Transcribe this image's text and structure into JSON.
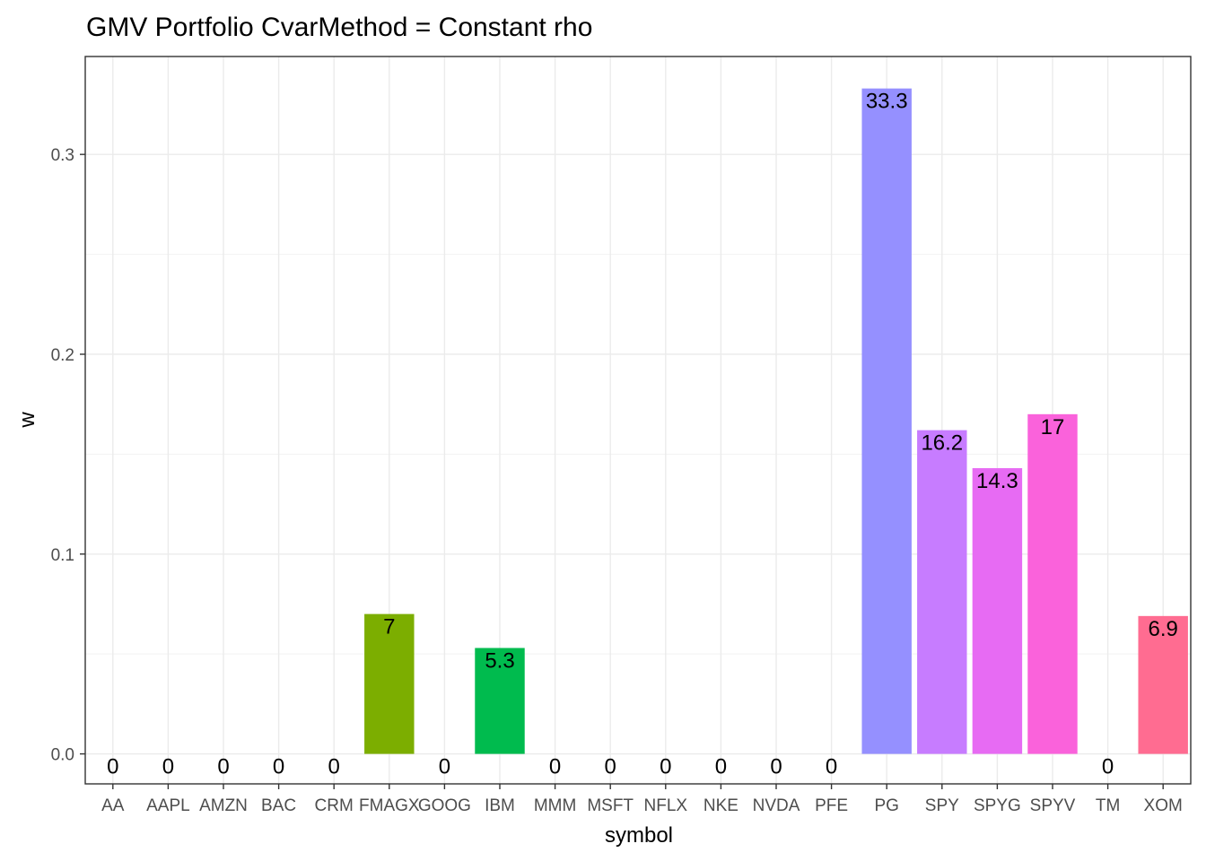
{
  "chart_data": {
    "type": "bar",
    "title": "GMV Portfolio CvarMethod = Constant rho",
    "xlabel": "symbol",
    "ylabel": "w",
    "ylim": [
      -0.015,
      0.349
    ],
    "yticks": [
      0.0,
      0.1,
      0.2,
      0.3
    ],
    "ytick_labels": [
      "0.0",
      "0.1",
      "0.2",
      "0.3"
    ],
    "grid": true,
    "legend": "none",
    "categories": [
      "AA",
      "AAPL",
      "AMZN",
      "BAC",
      "CRM",
      "FMAGX",
      "GOOG",
      "IBM",
      "MMM",
      "MSFT",
      "NFLX",
      "NKE",
      "NVDA",
      "PFE",
      "PG",
      "SPY",
      "SPYG",
      "SPYV",
      "TM",
      "XOM"
    ],
    "values": [
      0,
      0,
      0,
      0,
      0,
      0.07,
      0,
      0.053,
      0,
      0,
      0,
      0,
      0,
      0,
      0.333,
      0.162,
      0.143,
      0.17,
      0,
      0.069
    ],
    "labels": [
      "0",
      "0",
      "0",
      "0",
      "0",
      "7",
      "0",
      "5.3",
      "0",
      "0",
      "0",
      "0",
      "0",
      "0",
      "33.3",
      "16.2",
      "14.3",
      "17",
      "0",
      "6.9"
    ],
    "colors": [
      "#F8766D",
      "#EA8331",
      "#D89000",
      "#C09B00",
      "#A3A500",
      "#7CAE00",
      "#39B600",
      "#00BB4E",
      "#00BF7D",
      "#00C1A3",
      "#00BFC4",
      "#00BAE0",
      "#00B0F6",
      "#35A2FF",
      "#9590FF",
      "#C77CFF",
      "#E76BF3",
      "#FA62DB",
      "#FF62BC",
      "#FF6C91"
    ],
    "colors_hint": "default ggplot2 hue palette per category"
  }
}
